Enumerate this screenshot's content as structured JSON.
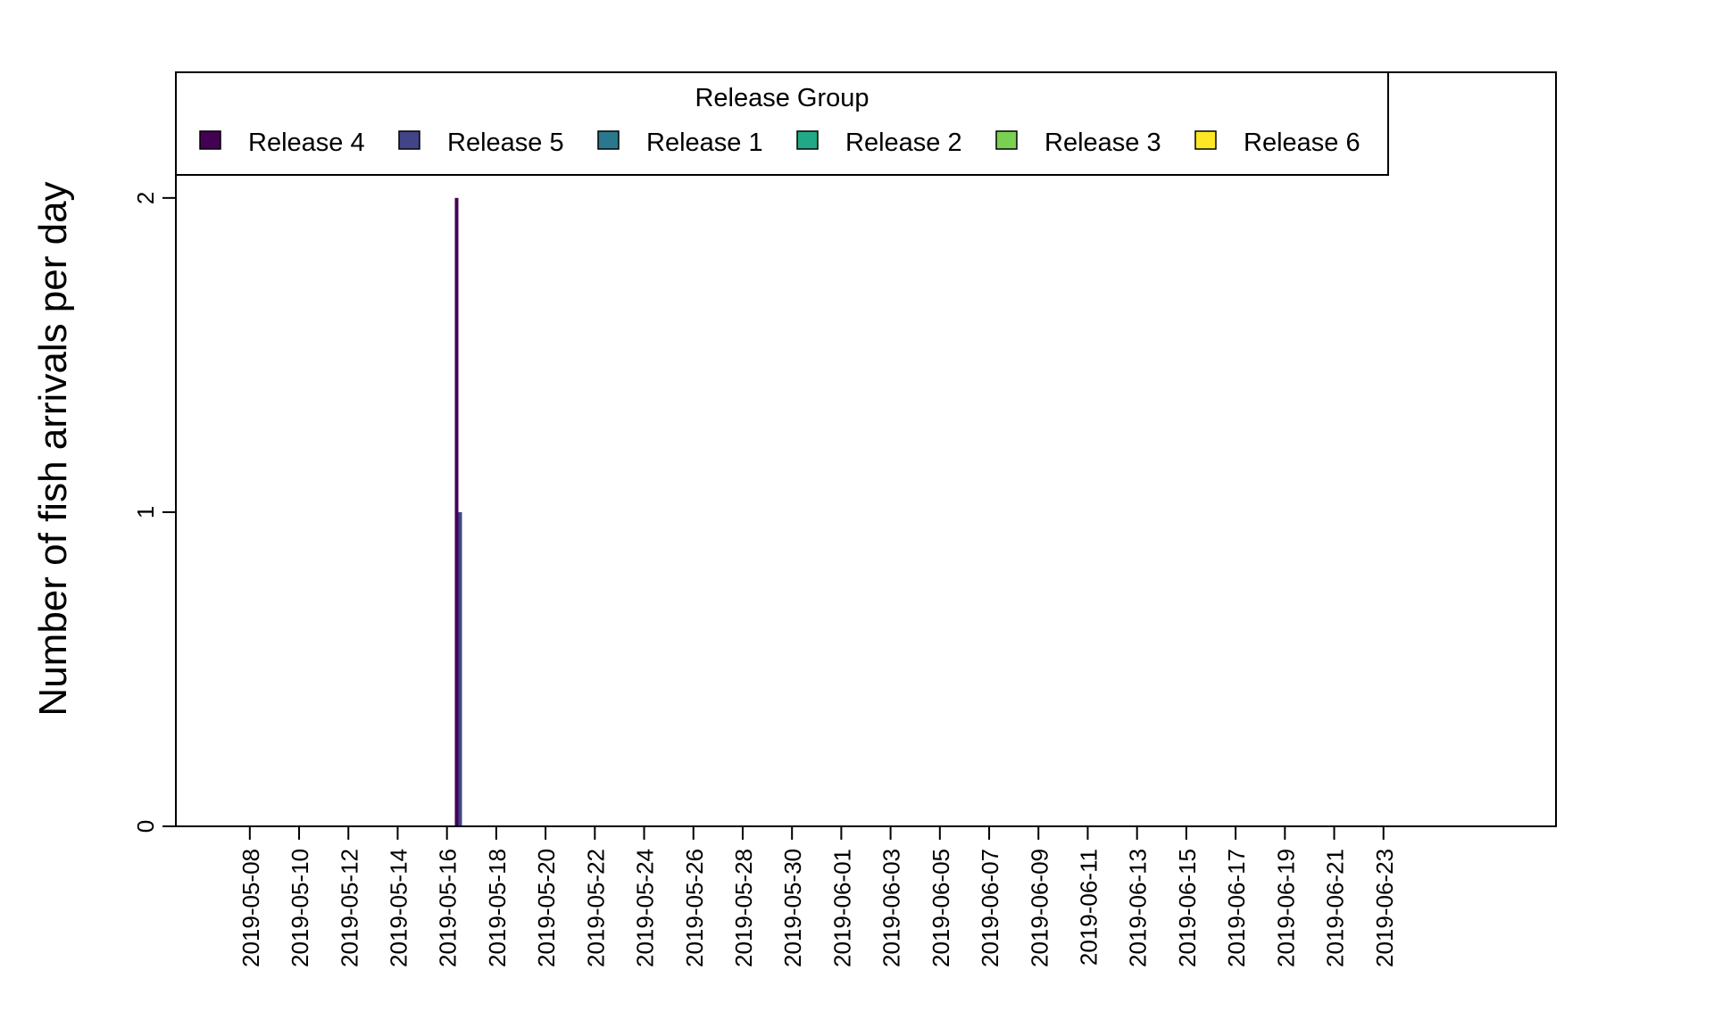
{
  "chart_data": {
    "type": "bar",
    "ylabel": "Number of fish arrivals per day",
    "xlabel": "",
    "ylim": [
      0,
      2.4
    ],
    "yticks": [
      0,
      1,
      2
    ],
    "xlim": [
      "2019-05-05",
      "2019-06-30"
    ],
    "xtick_labels": [
      "2019-05-08",
      "2019-05-10",
      "2019-05-12",
      "2019-05-14",
      "2019-05-16",
      "2019-05-18",
      "2019-05-20",
      "2019-05-22",
      "2019-05-24",
      "2019-05-26",
      "2019-05-28",
      "2019-05-30",
      "2019-06-01",
      "2019-06-03",
      "2019-06-05",
      "2019-06-07",
      "2019-06-09",
      "2019-06-11",
      "2019-06-13",
      "2019-06-15",
      "2019-06-17",
      "2019-06-19",
      "2019-06-21",
      "2019-06-23"
    ],
    "legend": {
      "title": "Release Group",
      "placement": "top",
      "entries": [
        "Release 4",
        "Release 5",
        "Release 1",
        "Release 2",
        "Release 3",
        "Release 6"
      ]
    },
    "series": [
      {
        "name": "Release 4",
        "color": "#440154",
        "points": [
          {
            "x": "2019-05-17",
            "y": 2
          }
        ]
      },
      {
        "name": "Release 5",
        "color": "#414487",
        "points": [
          {
            "x": "2019-05-17",
            "y": 1
          }
        ]
      },
      {
        "name": "Release 1",
        "color": "#2A788E",
        "points": []
      },
      {
        "name": "Release 2",
        "color": "#22A884",
        "points": []
      },
      {
        "name": "Release 3",
        "color": "#7AD151",
        "points": []
      },
      {
        "name": "Release 6",
        "color": "#FDE725",
        "points": []
      }
    ]
  }
}
